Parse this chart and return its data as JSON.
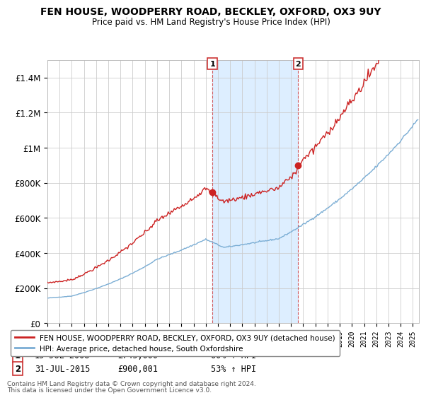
{
  "title": "FEN HOUSE, WOODPERRY ROAD, BECKLEY, OXFORD, OX3 9UY",
  "subtitle": "Price paid vs. HM Land Registry's House Price Index (HPI)",
  "ylim": [
    0,
    1500000
  ],
  "yticks": [
    0,
    200000,
    400000,
    600000,
    800000,
    1000000,
    1200000,
    1400000
  ],
  "ytick_labels": [
    "£0",
    "£200K",
    "£400K",
    "£600K",
    "£800K",
    "£1M",
    "£1.2M",
    "£1.4M"
  ],
  "bg_color": "#ffffff",
  "plot_bg_color": "#ffffff",
  "grid_color": "#cccccc",
  "sale1_date_num": 2008.54,
  "sale1_price": 745000,
  "sale1_date_str": "15-JUL-2008",
  "sale1_hpi_pct": "60% ↑ HPI",
  "sale2_date_num": 2015.58,
  "sale2_price": 900001,
  "sale2_date_str": "31-JUL-2015",
  "sale2_hpi_pct": "53% ↑ HPI",
  "hpi_line_color": "#7aadd4",
  "house_line_color": "#cc2222",
  "vline_color": "#cc3333",
  "shade_color": "#ddeeff",
  "legend_house": "FEN HOUSE, WOODPERRY ROAD, BECKLEY, OXFORD, OX3 9UY (detached house)",
  "legend_hpi": "HPI: Average price, detached house, South Oxfordshire",
  "footer1": "Contains HM Land Registry data © Crown copyright and database right 2024.",
  "footer2": "This data is licensed under the Open Government Licence v3.0."
}
